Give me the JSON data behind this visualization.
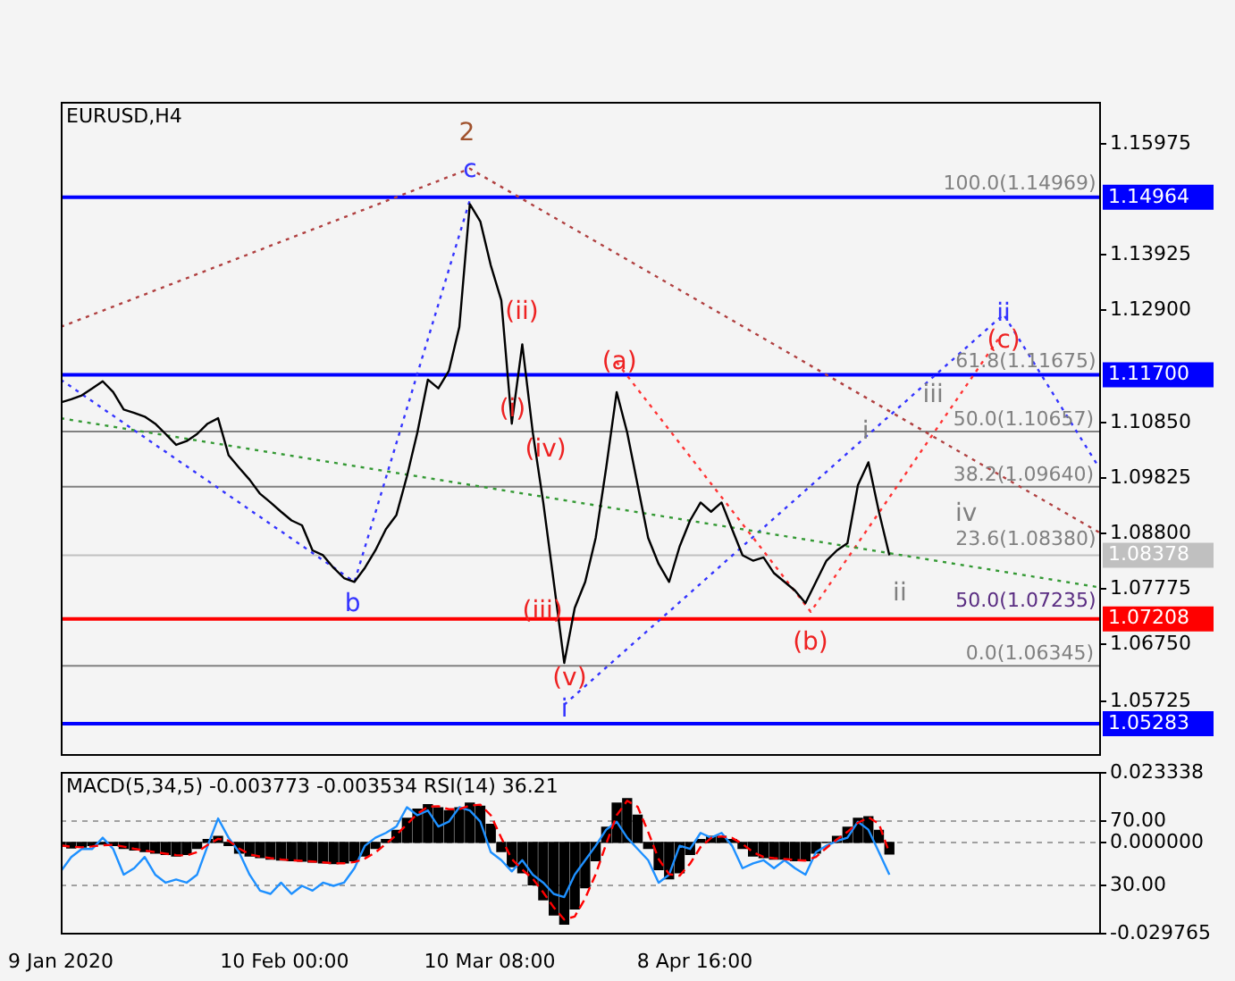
{
  "chart_data": [
    {
      "type": "line",
      "title": "EURUSD,H4",
      "tick_labels": "y",
      "marker": "none",
      "x": [
        "2020-01-09T00:00",
        "2020-01-10T12:00",
        "2020-01-12T00:00",
        "2020-01-13T12:00",
        "2020-01-15T00:00",
        "2020-01-16T12:00",
        "2020-01-18T00:00",
        "2020-01-19T12:00",
        "2020-01-21T00:00",
        "2020-01-22T12:00",
        "2020-01-24T00:00",
        "2020-01-25T12:00",
        "2020-01-27T00:00",
        "2020-01-28T12:00",
        "2020-01-30T00:00",
        "2020-01-31T12:00",
        "2020-02-02T00:00",
        "2020-02-03T12:00",
        "2020-02-05T00:00",
        "2020-02-06T12:00",
        "2020-02-08T00:00",
        "2020-02-09T12:00",
        "2020-02-11T00:00",
        "2020-02-12T12:00",
        "2020-02-14T00:00",
        "2020-02-15T12:00",
        "2020-02-17T00:00",
        "2020-02-18T12:00",
        "2020-02-20T00:00",
        "2020-02-21T12:00",
        "2020-02-23T00:00",
        "2020-02-24T12:00",
        "2020-02-26T00:00",
        "2020-02-27T12:00",
        "2020-02-29T00:00",
        "2020-03-01T12:00",
        "2020-03-03T00:00",
        "2020-03-04T12:00",
        "2020-03-06T00:00",
        "2020-03-07T12:00",
        "2020-03-09T00:00",
        "2020-03-10T12:00",
        "2020-03-12T00:00",
        "2020-03-13T12:00",
        "2020-03-15T00:00",
        "2020-03-16T12:00",
        "2020-03-18T00:00",
        "2020-03-19T12:00",
        "2020-03-21T00:00",
        "2020-03-22T12:00",
        "2020-03-24T00:00",
        "2020-03-25T12:00",
        "2020-03-27T00:00",
        "2020-03-28T12:00",
        "2020-03-30T00:00",
        "2020-03-31T12:00",
        "2020-04-02T00:00",
        "2020-04-03T12:00",
        "2020-04-05T00:00",
        "2020-04-06T12:00",
        "2020-04-08T00:00",
        "2020-04-09T12:00",
        "2020-04-11T00:00",
        "2020-04-12T12:00",
        "2020-04-14T00:00",
        "2020-04-15T12:00",
        "2020-04-17T00:00",
        "2020-04-18T12:00",
        "2020-04-20T00:00",
        "2020-04-21T12:00",
        "2020-04-23T00:00",
        "2020-04-24T12:00",
        "2020-04-26T00:00",
        "2020-04-27T12:00",
        "2020-04-29T00:00",
        "2020-04-30T12:00",
        "2020-05-02T00:00",
        "2020-05-03T12:00",
        "2020-05-05T00:00",
        "2020-05-06T12:00"
      ],
      "xlim": [
        "2020-01-09T00:00",
        "2020-06-05T12:00"
      ],
      "ylim": [
        1.04723,
        1.16719
      ],
      "yticks": [
        1.15975,
        1.13925,
        {
          "value": 1.129,
          "label": "1.12900"
        },
        {
          "value": 1.1085,
          "label": "1.10850"
        },
        1.09825,
        {
          "value": 1.088,
          "label": "1.08800"
        },
        1.07775,
        {
          "value": 1.0675,
          "label": "1.06750"
        },
        1.05725
      ],
      "series": [
        {
          "color": "#000000",
          "line_style": "solid",
          "values": [
            1.1119,
            1.1125,
            1.1132,
            1.1145,
            1.1158,
            1.1138,
            1.1106,
            1.11,
            1.1093,
            1.108,
            1.1061,
            1.1041,
            1.1048,
            1.1061,
            1.108,
            1.109,
            1.1022,
            1.0999,
            1.0977,
            1.0951,
            1.0935,
            1.0918,
            1.0902,
            1.0893,
            1.0847,
            1.0838,
            1.0815,
            1.0796,
            1.0789,
            1.0815,
            1.0847,
            1.0886,
            1.0912,
            1.0983,
            1.1064,
            1.1161,
            1.1145,
            1.1177,
            1.1258,
            1.1484,
            1.1452,
            1.1371,
            1.1307,
            1.108,
            1.1226,
            1.1064,
            1.0935,
            1.0789,
            1.064,
            1.0741,
            1.0789,
            1.087,
            1.0999,
            1.1138,
            1.1064,
            1.0967,
            1.087,
            1.0822,
            1.0789,
            1.0854,
            1.0902,
            1.0935,
            1.0918,
            1.0935,
            1.0886,
            1.0838,
            1.0828,
            1.0834,
            1.0805,
            1.0789,
            1.0773,
            1.075,
            1.0789,
            1.0828,
            1.0847,
            1.086,
            1.0967,
            1.1009,
            1.0918,
            1.0838
          ]
        },
        {
          "type": "line",
          "color": "#3333ff",
          "line_style": "dotted",
          "x": [
            "2020-01-09T00:00",
            "2020-02-20T00:00",
            "2020-03-07T12:00"
          ],
          "values": [
            1.1161,
            1.0789,
            1.1491
          ]
        },
        {
          "type": "line",
          "color": "#b04040",
          "line_style": "dotted",
          "x": [
            "2020-01-09T00:00",
            "2020-03-07T12:00",
            "2020-06-05T12:00"
          ],
          "values": [
            1.1258,
            1.1549,
            1.088
          ]
        },
        {
          "type": "line",
          "color": "#339933",
          "line_style": "dotted",
          "x": [
            "2020-01-09T00:00",
            "2020-06-05T12:00"
          ],
          "values": [
            1.109,
            1.0779
          ]
        },
        {
          "type": "line",
          "color": "#ff3333",
          "line_style": "dotted",
          "x": [
            "2020-03-28T12:00",
            "2020-04-25T06:00",
            "2020-05-22T10:00"
          ],
          "values": [
            1.1193,
            1.0734,
            1.1242
          ]
        },
        {
          "type": "line",
          "color": "#3333ff",
          "line_style": "dotted",
          "x": [
            "2020-03-21T00:00",
            "2020-05-22T20:00",
            "2020-06-05T12:00"
          ],
          "values": [
            1.0563,
            1.1281,
            1.0999
          ]
        }
      ],
      "ref_lines": [
        {
          "axis": "y",
          "value": 1.10657,
          "label": "50.0(1.10657)",
          "color": "#808080"
        },
        {
          "axis": "y",
          "value": 1.0964,
          "label": "38.2(1.09640)",
          "color": "#808080"
        },
        {
          "axis": "y",
          "value": 1.06345,
          "label": "0.0(1.06345)",
          "color": "#808080"
        },
        {
          "axis": "y",
          "value": 1.14964,
          "label": "1.14964",
          "color": "#0000ff"
        },
        {
          "axis": "y",
          "value": 1.117,
          "label": "1.11700",
          "color": "#0000ff"
        },
        {
          "axis": "y",
          "value": 1.08378,
          "label": "1.08378",
          "color": "#c0c0c0"
        },
        {
          "axis": "y",
          "value": 1.07208,
          "label": "1.07208",
          "color": "#ff0000"
        },
        {
          "axis": "y",
          "value": 1.05283,
          "label": "1.05283",
          "color": "#0000ff"
        }
      ],
      "annotations": [
        "2",
        "c",
        "b",
        "(ii)",
        "(i)",
        "(iv)",
        "(iii)",
        "(v)",
        "i",
        "(a)",
        "(b)",
        "i",
        "ii",
        "iii",
        "iv",
        "(c)",
        "ii",
        "100.0(1.14969)",
        "61.8(1.11675)",
        "23.6(1.08380)",
        "50.0(1.07235)"
      ]
    },
    {
      "type": "bar",
      "title": "MACD(5,34,5) -0.003773 -0.003534 RSI(14) 36.21",
      "marker": "none",
      "grid": true,
      "x": [
        "2020-01-09T00:00",
        "2020-01-10T12:00",
        "2020-01-12T00:00",
        "2020-01-13T12:00",
        "2020-01-15T00:00",
        "2020-01-16T12:00",
        "2020-01-18T00:00",
        "2020-01-19T12:00",
        "2020-01-21T00:00",
        "2020-01-22T12:00",
        "2020-01-24T00:00",
        "2020-01-25T12:00",
        "2020-01-27T00:00",
        "2020-01-28T12:00",
        "2020-01-30T00:00",
        "2020-01-31T12:00",
        "2020-02-02T00:00",
        "2020-02-03T12:00",
        "2020-02-05T00:00",
        "2020-02-06T12:00",
        "2020-02-08T00:00",
        "2020-02-09T12:00",
        "2020-02-11T00:00",
        "2020-02-12T12:00",
        "2020-02-14T00:00",
        "2020-02-15T12:00",
        "2020-02-17T00:00",
        "2020-02-18T12:00",
        "2020-02-20T00:00",
        "2020-02-21T12:00",
        "2020-02-23T00:00",
        "2020-02-24T12:00",
        "2020-02-26T00:00",
        "2020-02-27T12:00",
        "2020-02-29T00:00",
        "2020-03-01T12:00",
        "2020-03-03T00:00",
        "2020-03-04T12:00",
        "2020-03-06T00:00",
        "2020-03-07T12:00",
        "2020-03-09T00:00",
        "2020-03-10T12:00",
        "2020-03-12T00:00",
        "2020-03-13T12:00",
        "2020-03-15T00:00",
        "2020-03-16T12:00",
        "2020-03-18T00:00",
        "2020-03-19T12:00",
        "2020-03-21T00:00",
        "2020-03-22T12:00",
        "2020-03-24T00:00",
        "2020-03-25T12:00",
        "2020-03-27T00:00",
        "2020-03-28T12:00",
        "2020-03-30T00:00",
        "2020-03-31T12:00",
        "2020-04-02T00:00",
        "2020-04-03T12:00",
        "2020-04-05T00:00",
        "2020-04-06T12:00",
        "2020-04-08T00:00",
        "2020-04-09T12:00",
        "2020-04-11T00:00",
        "2020-04-12T12:00",
        "2020-04-14T00:00",
        "2020-04-15T12:00",
        "2020-04-17T00:00",
        "2020-04-18T12:00",
        "2020-04-20T00:00",
        "2020-04-21T12:00",
        "2020-04-23T00:00",
        "2020-04-24T12:00",
        "2020-04-26T00:00",
        "2020-04-27T12:00",
        "2020-04-29T00:00",
        "2020-04-30T12:00",
        "2020-05-02T00:00",
        "2020-05-03T12:00",
        "2020-05-05T00:00",
        "2020-05-06T12:00"
      ],
      "xlim": [
        "2020-01-09T00:00",
        "2020-06-05T12:00"
      ],
      "xticks": [
        {
          "value": "2020-01-09",
          "label": "9 Jan 2020"
        },
        {
          "value": "2020-02-10T00:00",
          "label": "10 Feb 00:00"
        },
        {
          "value": "2020-03-10T08:00",
          "label": "10 Mar 08:00"
        },
        {
          "value": "2020-04-08T16:00",
          "label": "8 Apr 16:00"
        }
      ],
      "ylim": [
        -0.029765,
        0.023338
      ],
      "yticks": [
        -0.029765,
        {
          "value": 0,
          "label": "0.000000"
        },
        0.023338
      ],
      "y2lim": [
        0,
        100
      ],
      "y2ticks": [
        {
          "value": 30,
          "label": "30.00"
        },
        {
          "value": 70,
          "label": "70.00"
        }
      ],
      "series": [
        {
          "type": "bar",
          "color": "#000000",
          "values": [
            -0.0012,
            -0.0018,
            -0.0015,
            -0.001,
            -0.0006,
            -0.001,
            -0.002,
            -0.0025,
            -0.003,
            -0.0035,
            -0.004,
            -0.0045,
            -0.004,
            -0.002,
            0.001,
            0.002,
            -0.001,
            -0.0035,
            -0.0045,
            -0.005,
            -0.0055,
            -0.0058,
            -0.006,
            -0.0062,
            -0.0065,
            -0.0068,
            -0.007,
            -0.0068,
            -0.006,
            -0.0045,
            -0.002,
            0.001,
            0.004,
            0.008,
            0.011,
            0.0125,
            0.0115,
            0.0105,
            0.0115,
            0.013,
            0.012,
            0.006,
            -0.003,
            -0.008,
            -0.01,
            -0.014,
            -0.019,
            -0.024,
            -0.027,
            -0.022,
            -0.015,
            -0.006,
            0.005,
            0.013,
            0.0145,
            0.009,
            -0.002,
            -0.009,
            -0.012,
            -0.01,
            -0.004,
            0.001,
            0.002,
            0.002,
            0.001,
            -0.002,
            -0.0045,
            -0.005,
            -0.0055,
            -0.0055,
            -0.006,
            -0.006,
            -0.0035,
            0.0,
            0.002,
            0.005,
            0.008,
            0.0085,
            0.004,
            -0.0038
          ]
        },
        {
          "type": "line",
          "color": "#ff0000",
          "line_style": "dashed",
          "values": [
            -0.001,
            -0.0014,
            -0.0016,
            -0.0013,
            -0.0009,
            -0.0008,
            -0.0014,
            -0.0021,
            -0.0027,
            -0.0032,
            -0.0037,
            -0.0042,
            -0.0043,
            -0.0032,
            -0.0008,
            0.0012,
            0.0006,
            -0.002,
            -0.0039,
            -0.0047,
            -0.0052,
            -0.0056,
            -0.0059,
            -0.0061,
            -0.0063,
            -0.0066,
            -0.0069,
            -0.0069,
            -0.0065,
            -0.0053,
            -0.0033,
            -0.0005,
            0.0025,
            0.006,
            0.0095,
            0.0118,
            0.012,
            0.011,
            0.011,
            0.0122,
            0.0125,
            0.009,
            0.0015,
            -0.0055,
            -0.009,
            -0.012,
            -0.0165,
            -0.0215,
            -0.0255,
            -0.0245,
            -0.0185,
            -0.0105,
            -0.0005,
            0.009,
            0.0138,
            0.0118,
            0.0035,
            -0.0055,
            -0.0105,
            -0.011,
            -0.007,
            -0.0015,
            0.0015,
            0.002,
            0.0015,
            -0.0005,
            -0.0032,
            -0.0048,
            -0.0052,
            -0.0055,
            -0.0058,
            -0.006,
            -0.0048,
            -0.0018,
            0.001,
            0.0035,
            0.0065,
            0.0083,
            0.0062,
            -0.0035
          ]
        },
        {
          "type": "line",
          "color": "#1e90ff",
          "axis": "y2",
          "line_style": "solid",
          "values": [
            38,
            47,
            52,
            52,
            59,
            52,
            36,
            40,
            47,
            36,
            31,
            33,
            31,
            36,
            54,
            71,
            59,
            50,
            36,
            26,
            24,
            31,
            24,
            29,
            26,
            31,
            29,
            31,
            40,
            54,
            59,
            62,
            66,
            78,
            73,
            76,
            66,
            69,
            78,
            76,
            69,
            50,
            45,
            38,
            45,
            36,
            31,
            24,
            22,
            36,
            45,
            54,
            64,
            69,
            59,
            52,
            45,
            31,
            36,
            54,
            52,
            62,
            59,
            62,
            54,
            40,
            43,
            45,
            40,
            45,
            40,
            36,
            50,
            54,
            57,
            59,
            69,
            64,
            50,
            36
          ]
        }
      ]
    }
  ]
}
